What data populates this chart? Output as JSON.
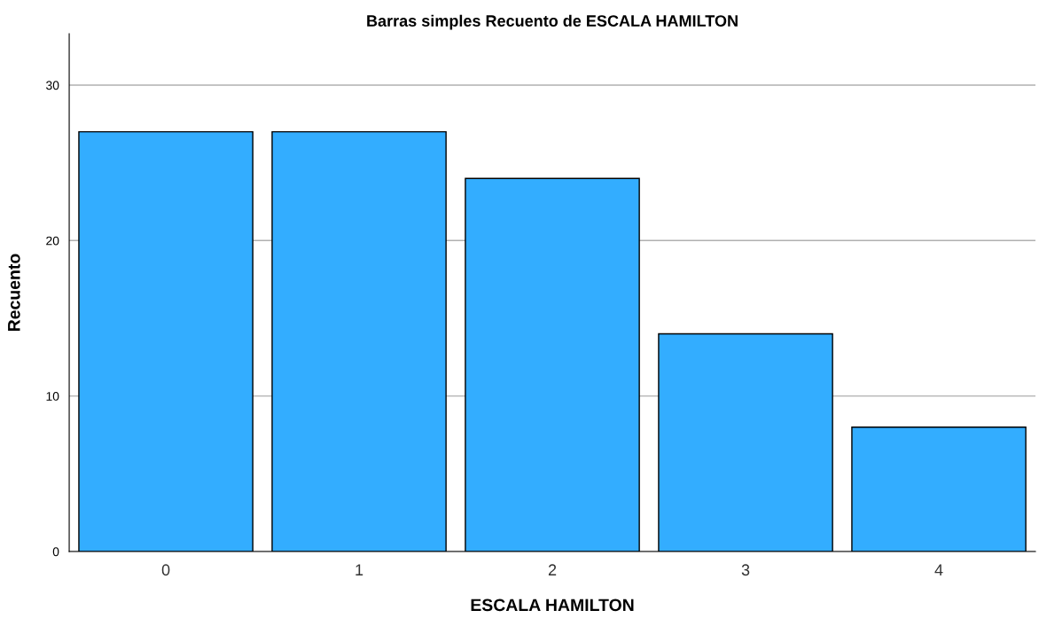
{
  "chart_data": {
    "type": "bar",
    "title": "Barras simples Recuento de ESCALA HAMILTON",
    "xlabel": "ESCALA HAMILTON",
    "ylabel": "Recuento",
    "categories": [
      "0",
      "1",
      "2",
      "3",
      "4"
    ],
    "values": [
      27,
      27,
      24,
      14,
      8
    ],
    "color": "#33adff",
    "ylim": [
      0,
      33.3
    ],
    "yticks": [
      0,
      10,
      20,
      30
    ],
    "grid": "y",
    "legend": false
  }
}
